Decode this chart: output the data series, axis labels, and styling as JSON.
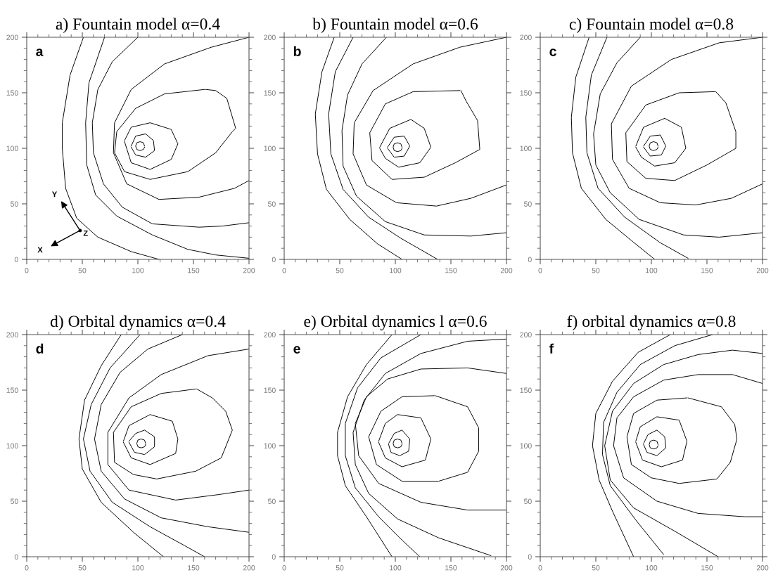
{
  "chart_data": [
    {
      "type": "line",
      "title": "a) Fountain model α=0.4",
      "xlim": [
        0,
        200
      ],
      "ylim": [
        0,
        200
      ],
      "xticks": [
        0,
        50,
        100,
        150,
        200
      ],
      "yticks": [
        0,
        50,
        100,
        150,
        200
      ],
      "annotations": [
        "a",
        "Y",
        "Z",
        "X"
      ],
      "series": [
        {
          "color": "#000000",
          "x": [
            51,
            39,
            32,
            32,
            35,
            45,
            64,
            94,
            119
          ],
          "values": [
            200,
            166,
            123,
            100,
            64,
            37,
            20,
            7,
            0
          ]
        },
        {
          "color": "#000000",
          "x": [
            70,
            56,
            53,
            54,
            62,
            81,
            113,
            145,
            170,
            200
          ],
          "values": [
            200,
            159,
            123,
            85,
            58,
            39,
            22,
            9,
            4,
            1
          ]
        },
        {
          "color": "#000000",
          "x": [
            100,
            77,
            64,
            59,
            60,
            69,
            86,
            113,
            155,
            176,
            200
          ],
          "values": [
            200,
            178,
            153,
            123,
            96,
            68,
            47,
            32,
            29,
            30,
            33
          ]
        },
        {
          "color": "#000000",
          "x": [
            200,
            166,
            124,
            94,
            79,
            78,
            90,
            119,
            155,
            187,
            200
          ],
          "values": [
            200,
            191,
            176,
            153,
            123,
            96,
            68,
            54,
            56,
            64,
            71
          ]
        },
        {
          "color": "#000000",
          "x": [
            160,
            124,
            98,
            81,
            79,
            88,
            111,
            145,
            170,
            185,
            188,
            180,
            170,
            161
          ],
          "values": [
            153,
            149,
            136,
            115,
            96,
            79,
            72,
            79,
            96,
            115,
            118,
            145,
            152,
            153
          ]
        },
        {
          "color": "#000000",
          "x": [
            88,
            94,
            111,
            130,
            136,
            130,
            111,
            94,
            88
          ],
          "values": [
            107,
            119,
            123,
            117,
            104,
            90,
            81,
            87,
            106
          ]
        },
        {
          "color": "#000000",
          "x": [
            94,
            98,
            107,
            114,
            115,
            107,
            98,
            94
          ],
          "values": [
            102,
            111,
            113,
            107,
            98,
            92,
            94,
            101
          ]
        },
        {
          "color": "#000000",
          "x": [
            106,
            105,
            102,
            99,
            98,
            99,
            102,
            105,
            106
          ],
          "values": [
            102,
            105,
            106,
            105,
            102,
            99,
            98,
            99,
            101
          ]
        }
      ]
    },
    {
      "type": "line",
      "title": "b) Fountain model α=0.6",
      "xlim": [
        0,
        200
      ],
      "ylim": [
        0,
        200
      ],
      "xticks": [
        0,
        50,
        100,
        150,
        200
      ],
      "yticks": [
        0,
        50,
        100,
        150,
        200
      ],
      "annotations": [
        "b"
      ],
      "series": [
        {
          "color": "#000000",
          "x": [
            45,
            34,
            28,
            30,
            38,
            59,
            84,
            106
          ],
          "values": [
            200,
            169,
            131,
            95,
            63,
            36,
            14,
            0
          ]
        },
        {
          "color": "#000000",
          "x": [
            62,
            46,
            40,
            42,
            53,
            76,
            105,
            138
          ],
          "values": [
            200,
            169,
            131,
            95,
            63,
            38,
            19,
            0
          ]
        },
        {
          "color": "#000000",
          "x": [
            92,
            70,
            57,
            52,
            53,
            65,
            91,
            126,
            168,
            200
          ],
          "values": [
            200,
            176,
            148,
            116,
            84,
            57,
            34,
            22,
            21,
            24
          ]
        },
        {
          "color": "#000000",
          "x": [
            200,
            158,
            116,
            80,
            63,
            62,
            74,
            101,
            137,
            168,
            200
          ],
          "values": [
            200,
            191,
            176,
            152,
            123,
            95,
            67,
            51,
            48,
            55,
            67
          ]
        },
        {
          "color": "#000000",
          "x": [
            158,
            116,
            91,
            77,
            79,
            97,
            126,
            154,
            176,
            174,
            164,
            159
          ],
          "values": [
            152,
            151,
            140,
            114,
            89,
            72,
            74,
            87,
            99,
            125,
            142,
            152
          ]
        },
        {
          "color": "#000000",
          "x": [
            86,
            95,
            114,
            126,
            132,
            122,
            103,
            91,
            86
          ],
          "values": [
            101,
            118,
            126,
            118,
            101,
            87,
            83,
            91,
            100
          ]
        },
        {
          "color": "#000000",
          "x": [
            93,
            99,
            108,
            113,
            108,
            99,
            93
          ],
          "values": [
            101,
            110,
            111,
            102,
            93,
            92,
            100
          ]
        },
        {
          "color": "#000000",
          "x": [
            106,
            105,
            102,
            99,
            98,
            99,
            102,
            105,
            106
          ],
          "values": [
            101,
            104,
            105,
            104,
            101,
            98,
            97,
            98,
            100
          ]
        }
      ]
    },
    {
      "type": "line",
      "title": "c) Fountain model α=0.8",
      "xlim": [
        0,
        200
      ],
      "ylim": [
        0,
        200
      ],
      "xticks": [
        0,
        50,
        100,
        150,
        200
      ],
      "yticks": [
        0,
        50,
        100,
        150,
        200
      ],
      "annotations": [
        "c"
      ],
      "series": [
        {
          "color": "#000000",
          "x": [
            44,
            32,
            28,
            29,
            37,
            59,
            82,
            103
          ],
          "values": [
            200,
            164,
            128,
            96,
            64,
            36,
            17,
            0
          ]
        },
        {
          "color": "#000000",
          "x": [
            60,
            46,
            41,
            42,
            52,
            76,
            108,
            133
          ],
          "values": [
            200,
            166,
            128,
            96,
            64,
            38,
            15,
            1
          ]
        },
        {
          "color": "#000000",
          "x": [
            90,
            69,
            54,
            48,
            50,
            63,
            89,
            129,
            161,
            200
          ],
          "values": [
            200,
            177,
            149,
            113,
            85,
            60,
            36,
            22,
            20,
            24
          ]
        },
        {
          "color": "#000000",
          "x": [
            200,
            161,
            118,
            82,
            64,
            65,
            80,
            108,
            140,
            172,
            200
          ],
          "values": [
            200,
            195,
            180,
            156,
            122,
            90,
            64,
            51,
            49,
            55,
            68
          ]
        },
        {
          "color": "#000000",
          "x": [
            157,
            125,
            95,
            77,
            78,
            95,
            121,
            150,
            176,
            176,
            167,
            158
          ],
          "values": [
            151,
            150,
            139,
            114,
            88,
            73,
            71,
            85,
            100,
            115,
            141,
            151
          ]
        },
        {
          "color": "#000000",
          "x": [
            86,
            93,
            112,
            127,
            131,
            121,
            103,
            91,
            86
          ],
          "values": [
            102,
            119,
            127,
            119,
            100,
            87,
            84,
            92,
            101
          ]
        },
        {
          "color": "#000000",
          "x": [
            93,
            99,
            108,
            113,
            109,
            99,
            93
          ],
          "values": [
            102,
            111,
            112,
            102,
            94,
            93,
            101
          ]
        },
        {
          "color": "#000000",
          "x": [
            106,
            105,
            102,
            99,
            98,
            99,
            102,
            105,
            106
          ],
          "values": [
            102,
            105,
            106,
            105,
            102,
            99,
            98,
            99,
            101
          ]
        }
      ]
    },
    {
      "type": "line",
      "title": "d) Orbital dynamics α=0.4",
      "xlim": [
        0,
        200
      ],
      "ylim": [
        0,
        200
      ],
      "xticks": [
        0,
        50,
        100,
        150,
        200
      ],
      "yticks": [
        0,
        50,
        100,
        150,
        200
      ],
      "annotations": [
        "d"
      ],
      "series": [
        {
          "color": "#000000",
          "x": [
            85,
            67,
            52,
            47,
            50,
            67,
            96,
            123
          ],
          "values": [
            200,
            172,
            141,
            106,
            79,
            49,
            22,
            0
          ]
        },
        {
          "color": "#000000",
          "x": [
            102,
            75,
            58,
            51,
            57,
            77,
            111,
            142,
            160
          ],
          "values": [
            200,
            170,
            137,
            106,
            77,
            49,
            27,
            10,
            0
          ]
        },
        {
          "color": "#000000",
          "x": [
            140,
            109,
            84,
            67,
            61,
            67,
            88,
            121,
            163,
            200
          ],
          "values": [
            200,
            187,
            166,
            137,
            106,
            77,
            52,
            35,
            27,
            22
          ]
        },
        {
          "color": "#000000",
          "x": [
            200,
            163,
            121,
            92,
            73,
            73,
            92,
            134,
            173,
            200
          ],
          "values": [
            187,
            181,
            164,
            143,
            112,
            83,
            60,
            51,
            56,
            60
          ]
        },
        {
          "color": "#000000",
          "x": [
            152,
            121,
            94,
            78,
            79,
            96,
            117,
            152,
            175,
            185,
            179,
            167,
            153
          ],
          "values": [
            151,
            147,
            135,
            112,
            85,
            74,
            70,
            77,
            89,
            114,
            131,
            143,
            151
          ]
        },
        {
          "color": "#000000",
          "x": [
            87,
            92,
            111,
            131,
            136,
            134,
            111,
            94,
            87
          ],
          "values": [
            104,
            118,
            128,
            122,
            106,
            93,
            83,
            89,
            103
          ]
        },
        {
          "color": "#000000",
          "x": [
            92,
            98,
            106,
            115,
            115,
            106,
            97,
            92
          ],
          "values": [
            104,
            111,
            114,
            108,
            99,
            92,
            94,
            103
          ]
        },
        {
          "color": "#000000",
          "x": [
            107,
            106,
            103,
            100,
            99,
            100,
            103,
            106,
            107
          ],
          "values": [
            102,
            105,
            106,
            105,
            102,
            99,
            98,
            99,
            101
          ]
        }
      ]
    },
    {
      "type": "line",
      "title": "e) Orbital dynamics l α=0.6",
      "xlim": [
        0,
        200
      ],
      "ylim": [
        0,
        200
      ],
      "xticks": [
        0,
        50,
        100,
        150,
        200
      ],
      "yticks": [
        0,
        50,
        100,
        150,
        200
      ],
      "annotations": [
        "e"
      ],
      "series": [
        {
          "color": "#000000",
          "x": [
            97,
            74,
            57,
            48,
            48,
            55,
            74,
            97
          ],
          "values": [
            200,
            173,
            144,
            112,
            91,
            64,
            36,
            0
          ]
        },
        {
          "color": "#000000",
          "x": [
            123,
            87,
            66,
            55,
            55,
            64,
            85,
            106,
            122
          ],
          "values": [
            200,
            179,
            152,
            120,
            91,
            62,
            36,
            15,
            0
          ]
        },
        {
          "color": "#000000",
          "x": [
            200,
            165,
            123,
            91,
            72,
            62,
            64,
            76,
            102,
            139,
            186
          ],
          "values": [
            196,
            194,
            183,
            165,
            141,
            112,
            83,
            57,
            34,
            17,
            1
          ]
        },
        {
          "color": "#000000",
          "x": [
            200,
            165,
            123,
            93,
            74,
            64,
            67,
            85,
            123,
            165,
            200
          ],
          "values": [
            165,
            170,
            169,
            160,
            144,
            120,
            91,
            66,
            49,
            42,
            42
          ]
        },
        {
          "color": "#000000",
          "x": [
            135,
            106,
            87,
            76,
            83,
            106,
            139,
            165,
            175,
            175,
            165,
            136
          ],
          "values": [
            145,
            144,
            131,
            108,
            83,
            68,
            68,
            76,
            95,
            116,
            135,
            145
          ]
        },
        {
          "color": "#000000",
          "x": [
            85,
            91,
            102,
            123,
            132,
            127,
            106,
            91,
            85
          ],
          "values": [
            104,
            120,
            128,
            125,
            106,
            87,
            81,
            89,
            103
          ]
        },
        {
          "color": "#000000",
          "x": [
            94,
            99,
            106,
            113,
            112,
            104,
            96,
            94
          ],
          "values": [
            102,
            111,
            114,
            106,
            95,
            91,
            94,
            101
          ]
        },
        {
          "color": "#000000",
          "x": [
            106,
            105,
            102,
            99,
            98,
            99,
            102,
            105,
            106
          ],
          "values": [
            102,
            105,
            106,
            105,
            102,
            99,
            98,
            99,
            101
          ]
        }
      ]
    },
    {
      "type": "line",
      "title": "f) orbital dynamics α=0.8",
      "xlim": [
        0,
        200
      ],
      "ylim": [
        0,
        200
      ],
      "xticks": [
        0,
        50,
        100,
        150,
        200
      ],
      "yticks": [
        0,
        50,
        100,
        150,
        200
      ],
      "annotations": [
        "f"
      ],
      "series": [
        {
          "color": "#000000",
          "x": [
            117,
            88,
            65,
            50,
            47,
            53,
            65,
            84
          ],
          "values": [
            200,
            184,
            158,
            129,
            100,
            69,
            41,
            0
          ]
        },
        {
          "color": "#000000",
          "x": [
            155,
            121,
            90,
            69,
            57,
            56,
            63,
            86,
            111
          ],
          "values": [
            200,
            190,
            173,
            148,
            121,
            92,
            64,
            33,
            2
          ]
        },
        {
          "color": "#000000",
          "x": [
            200,
            173,
            142,
            111,
            84,
            65,
            58,
            63,
            84,
            121,
            160
          ],
          "values": [
            183,
            186,
            182,
            173,
            156,
            131,
            100,
            69,
            44,
            23,
            0
          ]
        },
        {
          "color": "#000000",
          "x": [
            200,
            173,
            142,
            111,
            84,
            69,
            66,
            75,
            105,
            142,
            184,
            200
          ],
          "values": [
            156,
            164,
            164,
            159,
            144,
            125,
            100,
            71,
            50,
            39,
            36,
            36
          ]
        },
        {
          "color": "#000000",
          "x": [
            132,
            105,
            84,
            78,
            82,
            100,
            125,
            159,
            171,
            177,
            175,
            163,
            133
          ],
          "values": [
            143,
            141,
            129,
            108,
            83,
            71,
            66,
            70,
            85,
            106,
            119,
            135,
            143
          ]
        },
        {
          "color": "#000000",
          "x": [
            86,
            90,
            105,
            125,
            132,
            128,
            109,
            92,
            86
          ],
          "values": [
            104,
            117,
            126,
            123,
            104,
            87,
            81,
            87,
            103
          ]
        },
        {
          "color": "#000000",
          "x": [
            93,
            97,
            105,
            112,
            113,
            105,
            96,
            93
          ],
          "values": [
            102,
            110,
            114,
            108,
            98,
            91,
            94,
            101
          ]
        },
        {
          "color": "#000000",
          "x": [
            106,
            105,
            102,
            99,
            98,
            99,
            102,
            105,
            106
          ],
          "values": [
            101,
            104,
            105,
            104,
            101,
            98,
            97,
            98,
            100
          ]
        }
      ]
    }
  ]
}
